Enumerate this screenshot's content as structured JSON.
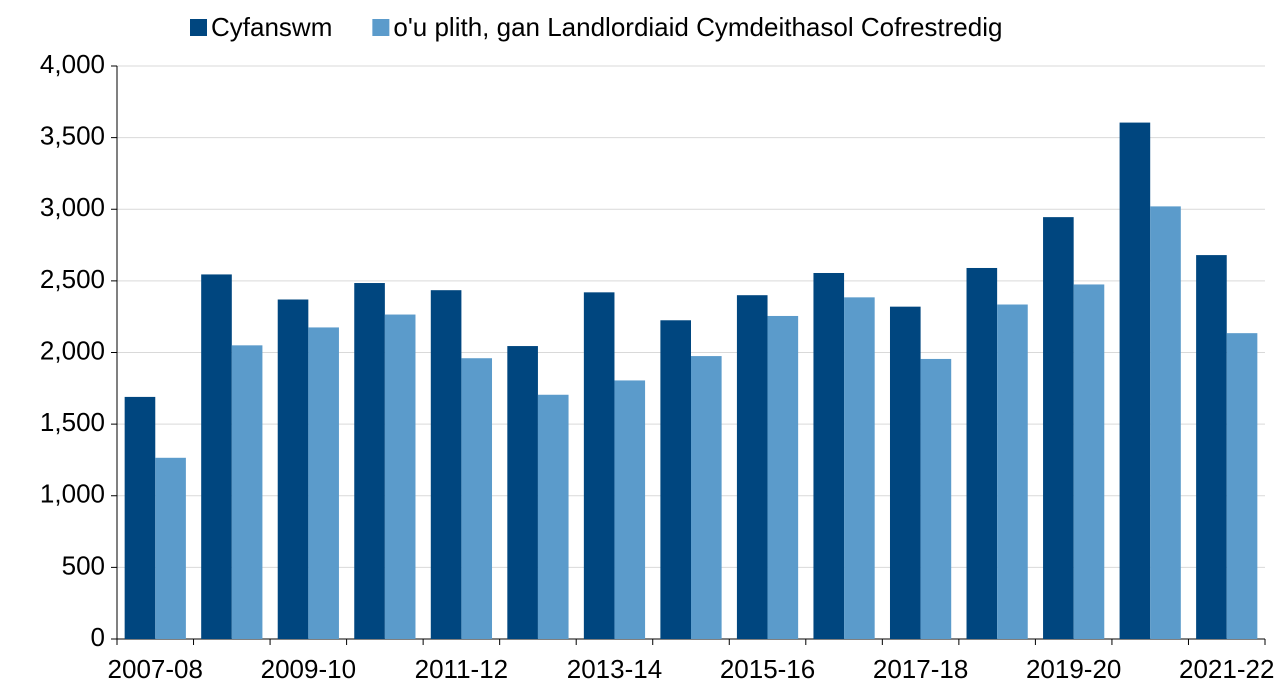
{
  "chart_data": {
    "type": "bar",
    "categories": [
      "2007-08",
      null,
      "2009-10",
      null,
      "2011-12",
      null,
      "2013-14",
      null,
      "2015-16",
      null,
      "2017-18",
      null,
      "2019-20",
      null,
      "2021-22"
    ],
    "series": [
      {
        "name": "Cyfanswm",
        "color": "#00467f",
        "values": [
          1690,
          2545,
          2370,
          2485,
          2435,
          2045,
          2420,
          2225,
          2400,
          2555,
          2320,
          2590,
          2945,
          3605,
          2680
        ]
      },
      {
        "name": "o'u plith, gan Landlordiaid Cymdeithasol Cofrestredig",
        "color": "#5b9bcb",
        "values": [
          1265,
          2050,
          2175,
          2265,
          1960,
          1705,
          1805,
          1975,
          2255,
          2385,
          1955,
          2335,
          2475,
          3020,
          2135
        ]
      }
    ],
    "ylim": [
      0,
      4000
    ],
    "yticks": [
      0,
      {
        "value": 500,
        "label": "500"
      },
      {
        "value": 1000,
        "label": "1,000"
      },
      {
        "value": 1500,
        "label": "1,500"
      },
      {
        "value": 2000,
        "label": "2,000"
      },
      {
        "value": 2500,
        "label": "2,500"
      },
      {
        "value": 3000,
        "label": "3,000"
      },
      {
        "value": 3500,
        "label": "3,500"
      },
      {
        "value": 4000,
        "label": "4,000"
      }
    ],
    "grid": true,
    "legend": "top"
  }
}
